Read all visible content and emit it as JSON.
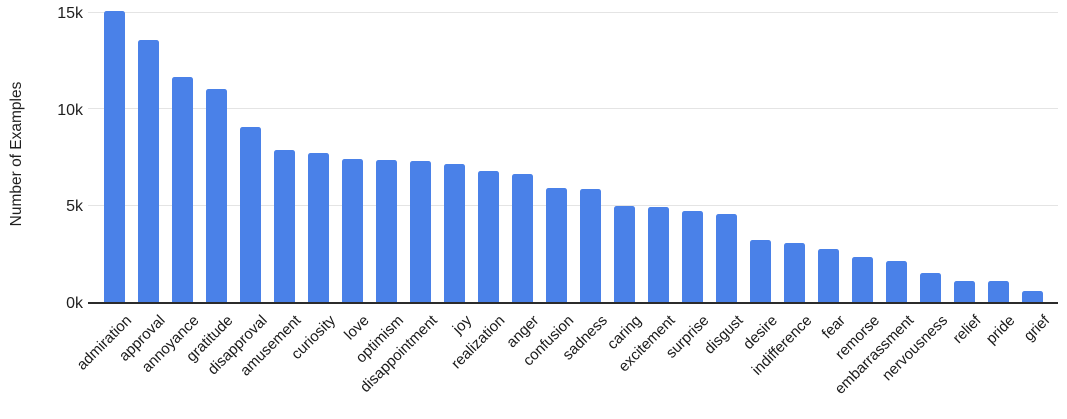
{
  "chart_data": {
    "type": "bar",
    "title": "",
    "xlabel": "",
    "ylabel": "Number of Examples",
    "ylim": [
      0,
      15500
    ],
    "grid": true,
    "legend": false,
    "bar_color": "#4a81e8",
    "yticks": [
      {
        "value": 0,
        "label": "0k"
      },
      {
        "value": 5000,
        "label": "5k"
      },
      {
        "value": 10000,
        "label": "10k"
      },
      {
        "value": 15000,
        "label": "15k"
      }
    ],
    "categories": [
      "admiration",
      "approval",
      "annoyance",
      "gratitude",
      "disapproval",
      "amusement",
      "curiosity",
      "love",
      "optimism",
      "disappointment",
      "joy",
      "realization",
      "anger",
      "confusion",
      "sadness",
      "caring",
      "excitement",
      "surprise",
      "disgust",
      "desire",
      "indifference",
      "fear",
      "remorse",
      "embarrassment",
      "nervousness",
      "relief",
      "pride",
      "grief"
    ],
    "values": [
      15100,
      13600,
      11650,
      11050,
      9050,
      7900,
      7700,
      7400,
      7350,
      7300,
      7150,
      6800,
      6650,
      5900,
      5850,
      5000,
      4900,
      4700,
      4550,
      3200,
      3050,
      2750,
      2350,
      2150,
      1500,
      1100,
      1080,
      550
    ]
  }
}
